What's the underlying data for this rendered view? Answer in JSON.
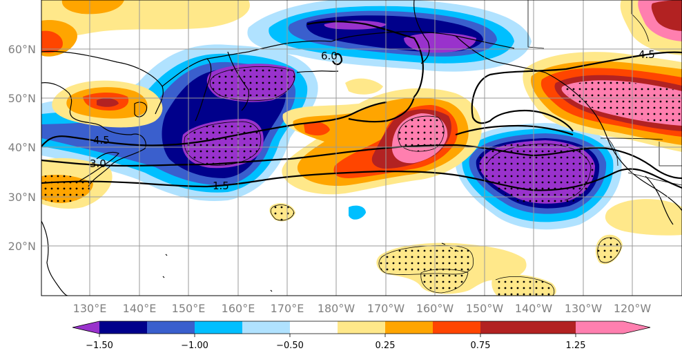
{
  "map": {
    "lon_labels": [
      "130°E",
      "140°E",
      "150°E",
      "160°E",
      "170°E",
      "180°W",
      "170°W",
      "160°W",
      "150°W",
      "140°W",
      "130°W",
      "120°W"
    ],
    "lat_labels": [
      "60°N",
      "50°N",
      "40°N",
      "30°N",
      "20°N"
    ],
    "contour_labels": [
      "6.0",
      "4.5",
      "4.5",
      "3.0",
      "1.5"
    ]
  },
  "colorbar": {
    "tick_labels": [
      "−1.50",
      "−1.00",
      "−0.50",
      "0.25",
      "0.75",
      "1.25"
    ],
    "colors": [
      "#9932CC",
      "#00008B",
      "#3A5FCD",
      "#00BFFF",
      "#B0E2FF",
      "#FFFFFF",
      "#FFE88A",
      "#FFA500",
      "#FF4500",
      "#B22222",
      "#FF7FAF"
    ]
  }
}
